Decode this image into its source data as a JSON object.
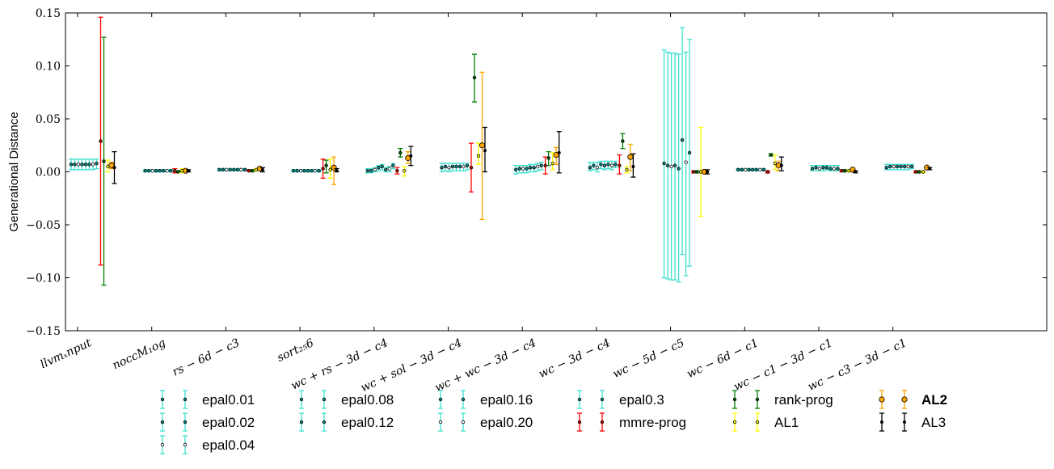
{
  "chart_data": {
    "type": "errorbar",
    "ylabel": "Generational Distance",
    "ylim": [
      -0.15,
      0.15
    ],
    "yticks": [
      "0.15",
      "0.10",
      "0.05",
      "0.00",
      "−0.05",
      "−0.10",
      "−0.15"
    ],
    "ytick_values": [
      0.15,
      0.1,
      0.05,
      0.0,
      -0.05,
      -0.1,
      -0.15
    ],
    "categories": [
      "llvm_input",
      "noc_CM_log",
      "rs-6d-c3",
      "sort_256",
      "wc+rs-3d-c4",
      "wc+sol-3d-c4",
      "wc+wc-3d-c4",
      "wc-3d-c4",
      "wc-5d-c5",
      "wc-6d-c1",
      "wc-c1-3d-c1",
      "wc-c3-3d-c1"
    ],
    "category_tick_labels": [
      "llvmₓnput",
      "noccM₁og",
      "rs − 6d − c3",
      "sort₂₅6",
      "wc + rs − 3d − c4",
      "wc + sol − 3d − c4",
      "wc + wc − 3d − c4",
      "wc − 3d − c4",
      "wc − 5d − c5",
      "wc − 6d − c1",
      "wc − c1 − 3d − c1",
      "wc − c3 − 3d − c1"
    ],
    "legend_position": "bottom",
    "series": [
      {
        "name": "epal0.01",
        "color": "#40e0d0",
        "points": [
          [
            0.007,
            0.012,
            0.002
          ],
          [
            0.001,
            0.002,
            0.0
          ],
          [
            0.002,
            0.003,
            0.001
          ],
          [
            0.001,
            0.002,
            0.0
          ],
          [
            0.001,
            0.003,
            -0.001
          ],
          [
            0.004,
            0.008,
            0.0
          ],
          [
            0.002,
            0.006,
            -0.002
          ],
          [
            0.004,
            0.009,
            0.001
          ],
          [
            0.008,
            0.115,
            -0.1
          ],
          [
            0.002,
            0.003,
            0.001
          ],
          [
            0.003,
            0.006,
            0.001
          ],
          [
            0.004,
            0.007,
            0.002
          ]
        ]
      },
      {
        "name": "epal0.02",
        "color": "#40e0d0",
        "points": [
          [
            0.007,
            0.012,
            0.002
          ],
          [
            0.001,
            0.002,
            0.0
          ],
          [
            0.002,
            0.003,
            0.001
          ],
          [
            0.001,
            0.002,
            0.0
          ],
          [
            0.001,
            0.003,
            -0.001
          ],
          [
            0.005,
            0.008,
            0.001
          ],
          [
            0.003,
            0.006,
            -0.001
          ],
          [
            0.006,
            0.009,
            0.002
          ],
          [
            0.006,
            0.113,
            -0.101
          ],
          [
            0.002,
            0.003,
            0.001
          ],
          [
            0.004,
            0.006,
            0.001
          ],
          [
            0.005,
            0.007,
            0.002
          ]
        ]
      },
      {
        "name": "epal0.04",
        "color": "#40e0d0",
        "points": [
          [
            0.007,
            0.012,
            0.002
          ],
          [
            0.001,
            0.002,
            0.0
          ],
          [
            0.002,
            0.003,
            0.001
          ],
          [
            0.001,
            0.002,
            0.0
          ],
          [
            0.002,
            0.004,
            0.0
          ],
          [
            0.004,
            0.008,
            0.0
          ],
          [
            0.003,
            0.006,
            -0.001
          ],
          [
            0.004,
            0.009,
            0.0
          ],
          [
            0.005,
            0.112,
            -0.102
          ],
          [
            0.002,
            0.003,
            0.001
          ],
          [
            0.003,
            0.006,
            0.001
          ],
          [
            0.005,
            0.007,
            0.002
          ]
        ]
      },
      {
        "name": "epal0.08",
        "color": "#40e0d0",
        "points": [
          [
            0.007,
            0.012,
            0.002
          ],
          [
            0.001,
            0.002,
            0.0
          ],
          [
            0.002,
            0.003,
            0.001
          ],
          [
            0.001,
            0.002,
            0.0
          ],
          [
            0.004,
            0.006,
            0.001
          ],
          [
            0.005,
            0.008,
            0.001
          ],
          [
            0.003,
            0.006,
            -0.001
          ],
          [
            0.007,
            0.01,
            0.003
          ],
          [
            0.006,
            0.112,
            -0.102
          ],
          [
            0.002,
            0.003,
            0.001
          ],
          [
            0.004,
            0.006,
            0.001
          ],
          [
            0.005,
            0.007,
            0.002
          ]
        ]
      },
      {
        "name": "epal0.12",
        "color": "#40e0d0",
        "points": [
          [
            0.007,
            0.012,
            0.002
          ],
          [
            0.001,
            0.002,
            0.0
          ],
          [
            0.002,
            0.003,
            0.001
          ],
          [
            0.001,
            0.002,
            0.0
          ],
          [
            0.005,
            0.007,
            0.002
          ],
          [
            0.005,
            0.008,
            0.001
          ],
          [
            0.004,
            0.007,
            0.0
          ],
          [
            0.006,
            0.01,
            0.002
          ],
          [
            0.003,
            0.111,
            -0.104
          ],
          [
            0.002,
            0.003,
            0.001
          ],
          [
            0.004,
            0.006,
            0.002
          ],
          [
            0.005,
            0.007,
            0.002
          ]
        ]
      },
      {
        "name": "epal0.16",
        "color": "#40e0d0",
        "points": [
          [
            0.007,
            0.012,
            0.002
          ],
          [
            0.001,
            0.002,
            0.0
          ],
          [
            0.002,
            0.003,
            0.001
          ],
          [
            0.001,
            0.002,
            0.0
          ],
          [
            0.002,
            0.004,
            0.0
          ],
          [
            0.005,
            0.008,
            0.001
          ],
          [
            0.004,
            0.007,
            0.0
          ],
          [
            0.007,
            0.01,
            0.003
          ],
          [
            0.03,
            0.136,
            -0.078
          ],
          [
            0.002,
            0.003,
            0.001
          ],
          [
            0.003,
            0.006,
            0.001
          ],
          [
            0.005,
            0.007,
            0.002
          ]
        ]
      },
      {
        "name": "epal0.20",
        "color": "#40e0d0",
        "points": [
          [
            0.007,
            0.012,
            0.002
          ],
          [
            0.001,
            0.002,
            0.0
          ],
          [
            0.002,
            0.003,
            0.001
          ],
          [
            0.001,
            0.002,
            0.0
          ],
          [
            0.003,
            0.005,
            0.0
          ],
          [
            0.005,
            0.008,
            0.001
          ],
          [
            0.005,
            0.008,
            0.001
          ],
          [
            0.006,
            0.01,
            0.002
          ],
          [
            0.009,
            0.113,
            -0.098
          ],
          [
            0.002,
            0.003,
            0.001
          ],
          [
            0.003,
            0.006,
            0.001
          ],
          [
            0.005,
            0.007,
            0.002
          ]
        ]
      },
      {
        "name": "epal0.3",
        "color": "#40e0d0",
        "points": [
          [
            0.008,
            0.012,
            0.003
          ],
          [
            0.001,
            0.002,
            0.0
          ],
          [
            0.002,
            0.003,
            0.001
          ],
          [
            0.001,
            0.002,
            0.0
          ],
          [
            0.006,
            0.008,
            0.003
          ],
          [
            0.006,
            0.008,
            0.002
          ],
          [
            0.006,
            0.009,
            0.002
          ],
          [
            0.007,
            0.01,
            0.004
          ],
          [
            0.018,
            0.125,
            -0.089
          ],
          [
            0.002,
            0.003,
            0.001
          ],
          [
            0.003,
            0.006,
            0.001
          ],
          [
            0.005,
            0.007,
            0.003
          ]
        ]
      },
      {
        "name": "mmre-prog",
        "color": "#ff0000",
        "points": [
          [
            0.029,
            0.146,
            -0.088
          ],
          [
            0.001,
            0.003,
            -0.001
          ],
          [
            0.001,
            0.002,
            0.001
          ],
          [
            0.003,
            0.012,
            -0.006
          ],
          [
            0.001,
            0.004,
            -0.002
          ],
          [
            0.004,
            0.027,
            -0.019
          ],
          [
            0.006,
            0.014,
            -0.002
          ],
          [
            0.006,
            0.016,
            -0.002
          ],
          [
            0.0,
            0.001,
            -0.001
          ],
          [
            0.0,
            0.001,
            -0.001
          ],
          [
            0.001,
            0.002,
            0.0
          ],
          [
            0.0,
            0.001,
            -0.001
          ]
        ]
      },
      {
        "name": "rank-prog",
        "color": "#008000",
        "points": [
          [
            0.01,
            0.127,
            -0.107
          ],
          [
            0.0,
            0.001,
            0.0
          ],
          [
            0.001,
            0.002,
            0.0
          ],
          [
            0.006,
            0.011,
            -0.001
          ],
          [
            0.018,
            0.022,
            0.014
          ],
          [
            0.089,
            0.111,
            0.066
          ],
          [
            0.013,
            0.019,
            0.006
          ],
          [
            0.029,
            0.036,
            0.022
          ],
          [
            0.0,
            0.001,
            -0.001
          ],
          [
            0.016,
            0.017,
            0.015
          ],
          [
            0.001,
            0.002,
            0.0
          ],
          [
            0.0,
            0.001,
            -0.001
          ]
        ]
      },
      {
        "name": "AL1",
        "color": "#ffff00",
        "points": [
          [
            0.005,
            0.011,
            0.0
          ],
          [
            0.001,
            0.003,
            -0.001
          ],
          [
            0.002,
            0.003,
            0.001
          ],
          [
            0.002,
            0.012,
            -0.006
          ],
          [
            0.001,
            0.005,
            -0.004
          ],
          [
            0.015,
            0.027,
            0.007
          ],
          [
            0.008,
            0.018,
            0.002
          ],
          [
            0.002,
            0.005,
            -0.001
          ],
          [
            0.0,
            0.042,
            -0.042
          ],
          [
            0.008,
            0.016,
            0.002
          ],
          [
            0.001,
            0.002,
            0.0
          ],
          [
            0.0,
            0.001,
            -0.001
          ]
        ]
      },
      {
        "name": "AL2",
        "color": "#ffa500",
        "points": [
          [
            0.006,
            0.009,
            0.003
          ],
          [
            0.001,
            0.002,
            0.0
          ],
          [
            0.003,
            0.004,
            0.002
          ],
          [
            0.004,
            0.014,
            -0.012
          ],
          [
            0.013,
            0.019,
            0.008
          ],
          [
            0.025,
            0.094,
            -0.045
          ],
          [
            0.016,
            0.023,
            0.007
          ],
          [
            0.014,
            0.026,
            0.001
          ],
          [
            0.0,
            0.002,
            -0.001
          ],
          [
            0.006,
            0.01,
            0.001
          ],
          [
            0.002,
            0.004,
            0.0
          ],
          [
            0.004,
            0.005,
            0.003
          ]
        ]
      },
      {
        "name": "AL3",
        "color": "#000000",
        "points": [
          [
            0.004,
            0.019,
            -0.011
          ],
          [
            0.001,
            0.002,
            0.0
          ],
          [
            0.002,
            0.004,
            0.0
          ],
          [
            0.001,
            0.003,
            0.0
          ],
          [
            0.015,
            0.024,
            0.006
          ],
          [
            0.02,
            0.042,
            0.0
          ],
          [
            0.018,
            0.038,
            -0.001
          ],
          [
            0.005,
            0.017,
            -0.005
          ],
          [
            0.0,
            0.002,
            -0.002
          ],
          [
            0.006,
            0.014,
            0.001
          ],
          [
            0.0,
            0.001,
            -0.001
          ],
          [
            0.003,
            0.004,
            0.002
          ]
        ]
      }
    ],
    "legend_columns": [
      [
        "epal0.01",
        "epal0.02",
        "epal0.04"
      ],
      [
        "epal0.08",
        "epal0.12"
      ],
      [
        "epal0.16",
        "epal0.20"
      ],
      [
        "epal0.3",
        "mmre-prog"
      ],
      [
        "rank-prog",
        "AL1"
      ],
      [
        "AL2",
        "AL3"
      ]
    ],
    "legend_bold": [
      "AL2"
    ]
  }
}
